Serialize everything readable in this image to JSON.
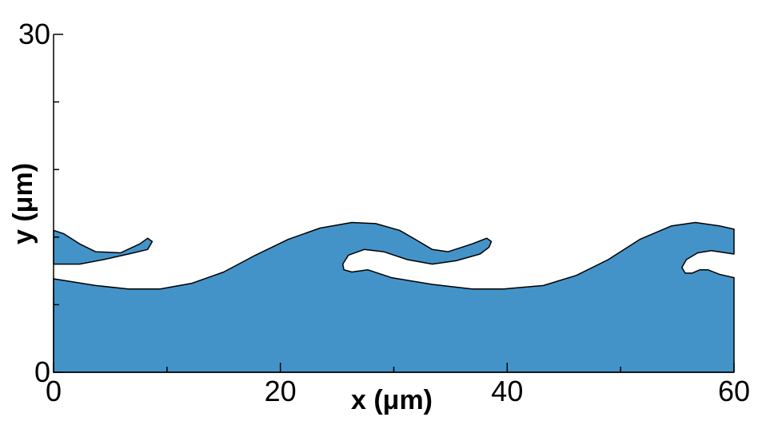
{
  "chart_data": {
    "type": "polygon",
    "xlabel": "x (μm)",
    "ylabel": "y (μm)",
    "xlim": [
      0,
      60
    ],
    "xticks": [
      0,
      20,
      40,
      60
    ],
    "xminorticks": [
      10,
      30,
      50
    ],
    "ylim": [
      0,
      30
    ],
    "yticks": [
      0,
      30
    ],
    "yminorticks": [
      6,
      12,
      18,
      24
    ],
    "color": "#4493c8",
    "polygons": [
      {
        "x": [
          0,
          60,
          60,
          58.7,
          57.7,
          57.0,
          56.3,
          55.7,
          55.4,
          55.8,
          56.8,
          58.0,
          60,
          60,
          58.7,
          56.6,
          54.5,
          51.7,
          48.9,
          46.1,
          43.2,
          39.7,
          36.9,
          33.4,
          29.8,
          27.7,
          26.3,
          25.6,
          25.5,
          26.0,
          27.4,
          29.1,
          31.2,
          33.4,
          35.5,
          37.6,
          38.4,
          38.6,
          38.2,
          36.9,
          34.8,
          33.4,
          31.9,
          30.5,
          28.4,
          26.3,
          23.5,
          20.7,
          17.8,
          15.0,
          12.2,
          9.4,
          6.6,
          3.7,
          0
        ],
        "y": [
          0,
          0,
          8.4,
          8.7,
          9.1,
          9.1,
          8.8,
          8.8,
          9.3,
          10.0,
          10.6,
          10.8,
          10.5,
          12.7,
          13.0,
          13.3,
          13.0,
          11.8,
          10.0,
          8.6,
          7.7,
          7.4,
          7.4,
          7.8,
          8.4,
          9.1,
          8.9,
          9.1,
          9.6,
          10.4,
          10.9,
          10.7,
          10.0,
          9.6,
          9.9,
          10.5,
          11.1,
          11.6,
          11.9,
          11.4,
          10.7,
          10.9,
          11.8,
          12.6,
          13.2,
          13.3,
          12.8,
          11.8,
          10.4,
          8.9,
          7.9,
          7.4,
          7.4,
          7.7,
          8.3
        ]
      },
      {
        "x": [
          0,
          0.9,
          2.3,
          3.7,
          5.9,
          7.6,
          8.3,
          8.7,
          8.3,
          6.6,
          4.4,
          2.3,
          0
        ],
        "y": [
          12.6,
          12.3,
          11.4,
          10.7,
          10.6,
          11.4,
          11.9,
          11.6,
          10.9,
          10.5,
          10.0,
          9.6,
          9.6
        ]
      }
    ]
  }
}
